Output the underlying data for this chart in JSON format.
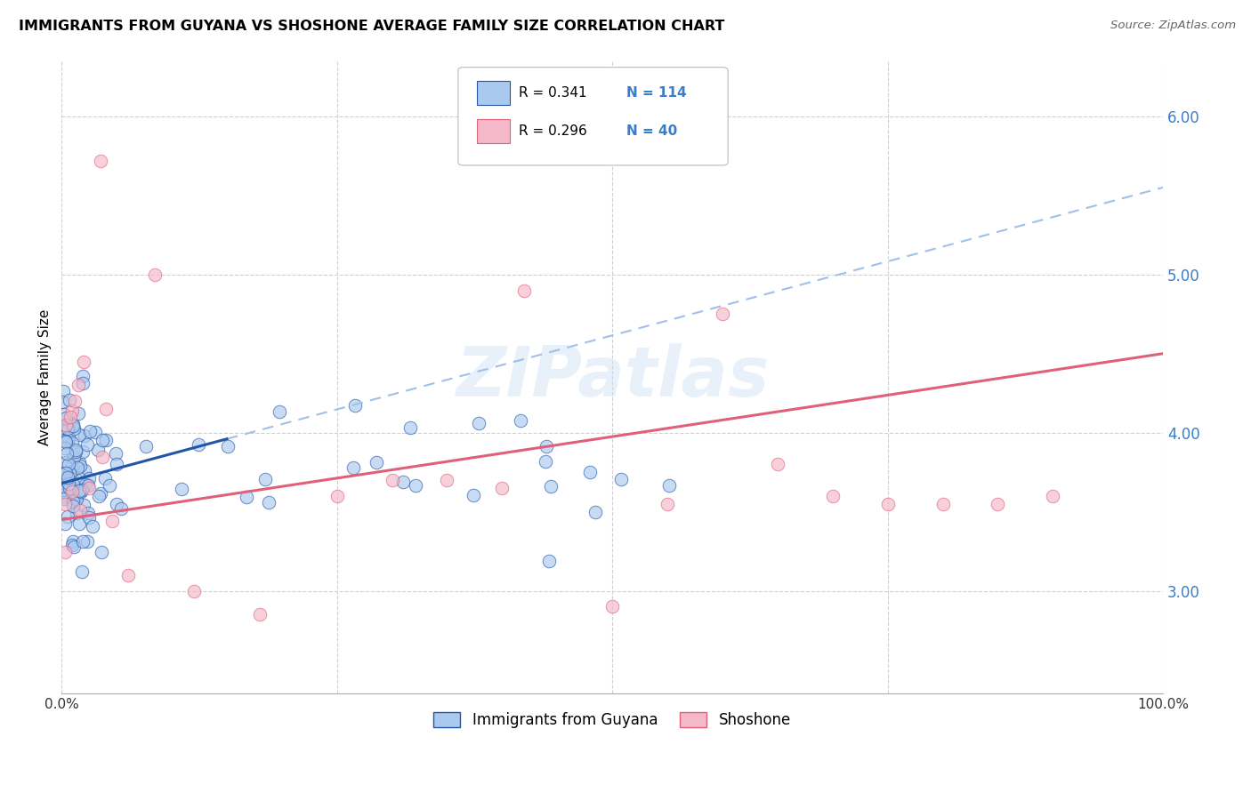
{
  "title": "IMMIGRANTS FROM GUYANA VS SHOSHONE AVERAGE FAMILY SIZE CORRELATION CHART",
  "source": "Source: ZipAtlas.com",
  "ylabel": "Average Family Size",
  "right_yticks": [
    3.0,
    4.0,
    5.0,
    6.0
  ],
  "xmin": 0.0,
  "xmax": 100.0,
  "ymin": 2.35,
  "ymax": 6.35,
  "watermark": "ZIPatlas",
  "legend_r1": "R = 0.341",
  "legend_n1": "N = 114",
  "legend_r2": "R = 0.296",
  "legend_n2": "N = 40",
  "series1_color": "#aac9ee",
  "series2_color": "#f5b8c8",
  "trendline1_color": "#2255aa",
  "trendline2_color": "#e0607a",
  "trendline1_dash_color": "#a0c0e8",
  "guyana_seed": 12345,
  "shoshone_seed": 67890,
  "blue_trendline_x0": 0.0,
  "blue_trendline_y0": 3.68,
  "blue_trendline_x1": 100.0,
  "blue_trendline_y1": 5.55,
  "blue_solid_x0": 0.0,
  "blue_solid_x1": 15.0,
  "pink_trendline_x0": 0.0,
  "pink_trendline_y0": 3.45,
  "pink_trendline_x1": 100.0,
  "pink_trendline_y1": 4.5
}
